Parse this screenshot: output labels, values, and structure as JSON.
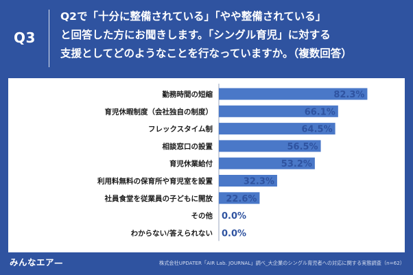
{
  "header": {
    "question_number": "Q3",
    "question_lines": [
      "Q2で「十分に整備されている」「やや整備されている」",
      "と回答した方にお聞きします。「シングル育児」に対する",
      "支援としてどのようなことを行なっていますか。（複数回答）"
    ]
  },
  "chart_data": {
    "type": "bar",
    "orientation": "horizontal",
    "categories": [
      "勤務時間の短縮",
      "育児休暇制度（会社独自の制度）",
      "フレックスタイム制",
      "相談窓口の設置",
      "育児休業給付",
      "利用料無料の保育所や育児室を設置",
      "社員食堂を従業員の子どもに開放",
      "その他",
      "わからない/答えられない"
    ],
    "values": [
      82.3,
      66.1,
      64.5,
      56.5,
      53.2,
      32.3,
      22.6,
      0.0,
      0.0
    ],
    "value_labels": [
      "82.3%",
      "66.1%",
      "64.5%",
      "56.5%",
      "53.2%",
      "32.3%",
      "22.6%",
      "0.0%",
      "0.0%"
    ],
    "xlim": [
      0,
      100
    ],
    "grid": false,
    "bar_color": "#4a78c8",
    "label_color": "#2f53a0"
  },
  "footer": {
    "logo_text": "みんなエア—",
    "source_text": "株式会社UPDATER「AIR Lab. JOURNAL」調べ_大企業のシングル育児者への対応に関する実態調査（n=62）"
  }
}
